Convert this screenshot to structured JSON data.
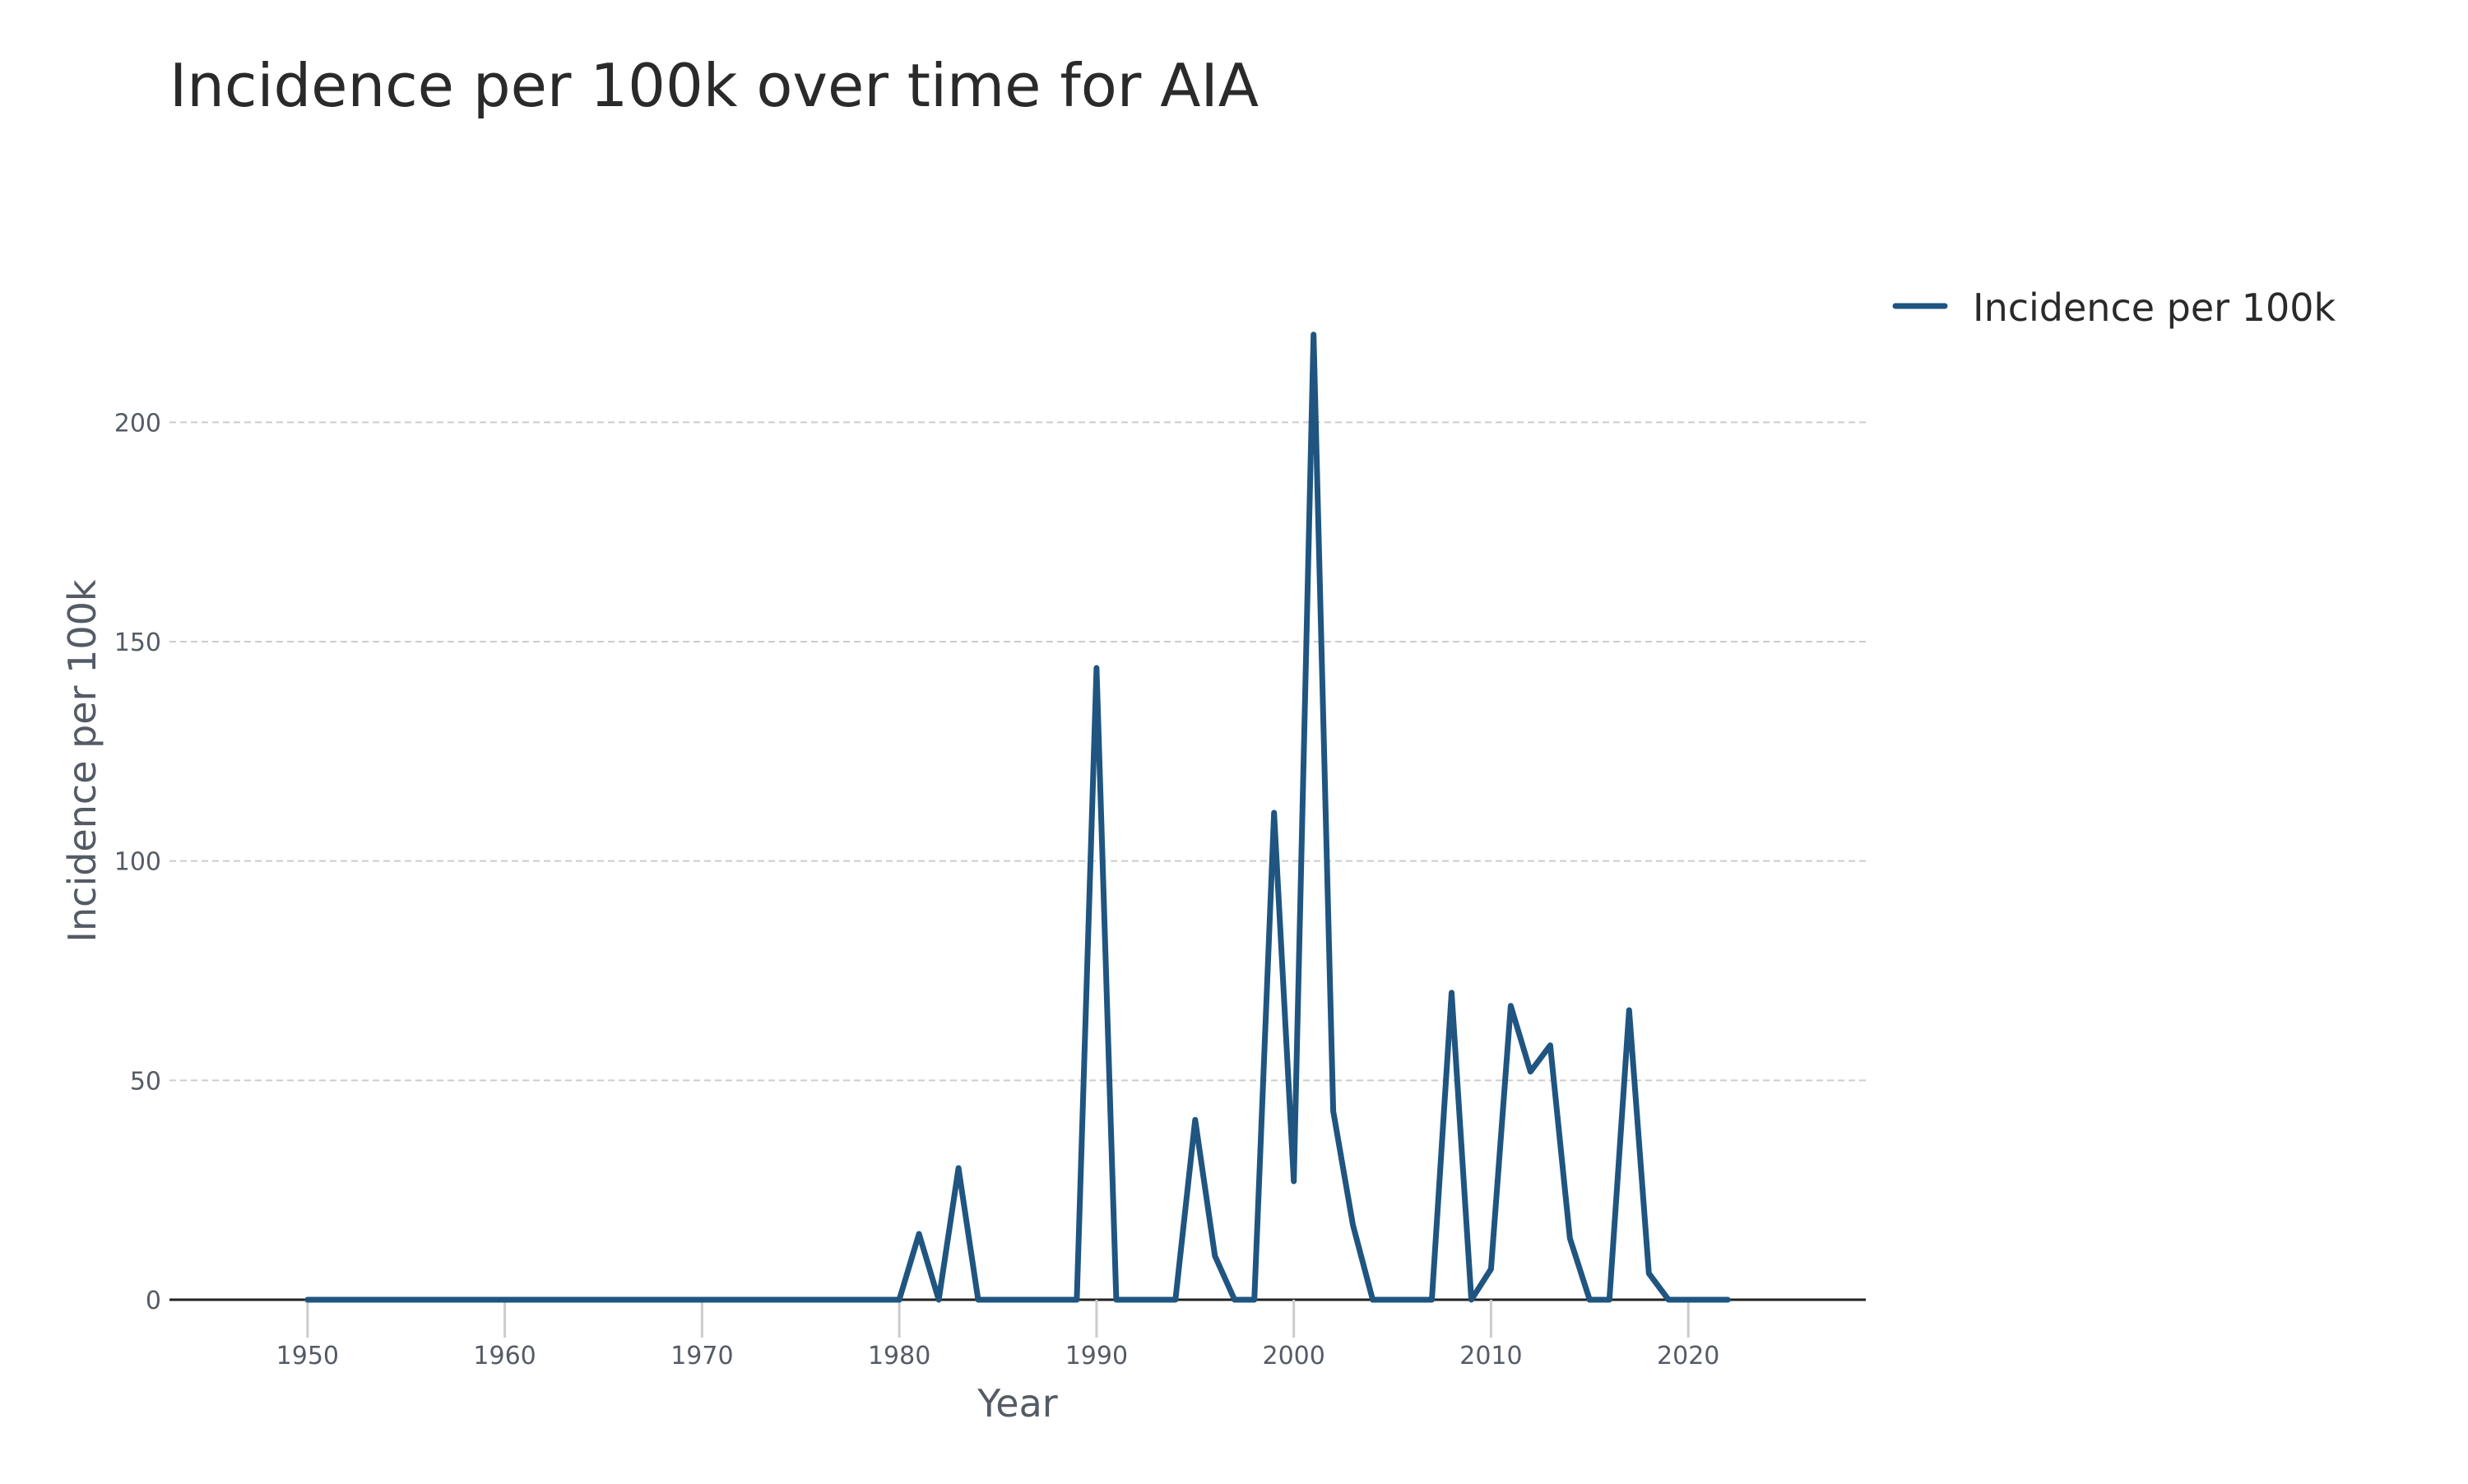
{
  "chart_data": {
    "type": "line",
    "title": "Incidence per 100k over time for AIA",
    "xlabel": "Year",
    "ylabel": "Incidence per 100k",
    "xlim": [
      1943,
      2029
    ],
    "ylim": [
      0,
      225
    ],
    "xticks": [
      1950,
      1960,
      1970,
      1980,
      1990,
      2000,
      2010,
      2020
    ],
    "yticks": [
      0,
      50,
      100,
      150,
      200
    ],
    "grid": "y-dashed",
    "legend_position": "top-right",
    "colors": {
      "series": "#1f5580",
      "axis": "#222222",
      "grid": "#cccccc",
      "tick_text": "#555b66"
    },
    "series": [
      {
        "name": "Incidence per 100k",
        "x": [
          1950,
          1951,
          1952,
          1953,
          1954,
          1955,
          1956,
          1957,
          1958,
          1959,
          1960,
          1961,
          1962,
          1963,
          1964,
          1965,
          1966,
          1967,
          1968,
          1969,
          1970,
          1971,
          1972,
          1973,
          1974,
          1975,
          1976,
          1977,
          1978,
          1979,
          1980,
          1981,
          1982,
          1983,
          1984,
          1985,
          1986,
          1987,
          1988,
          1989,
          1990,
          1991,
          1992,
          1993,
          1994,
          1995,
          1996,
          1997,
          1998,
          1999,
          2000,
          2001,
          2002,
          2003,
          2004,
          2005,
          2006,
          2007,
          2008,
          2009,
          2010,
          2011,
          2012,
          2013,
          2014,
          2015,
          2016,
          2017,
          2018,
          2019,
          2020,
          2021,
          2022
        ],
        "y": [
          0,
          0,
          0,
          0,
          0,
          0,
          0,
          0,
          0,
          0,
          0,
          0,
          0,
          0,
          0,
          0,
          0,
          0,
          0,
          0,
          0,
          0,
          0,
          0,
          0,
          0,
          0,
          0,
          0,
          0,
          0,
          15,
          0,
          30,
          0,
          0,
          0,
          0,
          0,
          0,
          144,
          0,
          0,
          0,
          0,
          41,
          10,
          0,
          0,
          111,
          27,
          220,
          43,
          17,
          0,
          0,
          0,
          0,
          70,
          0,
          7,
          67,
          52,
          58,
          14,
          0,
          0,
          66,
          6,
          0,
          0,
          0,
          0
        ]
      }
    ]
  }
}
